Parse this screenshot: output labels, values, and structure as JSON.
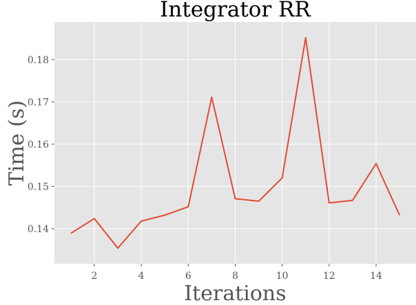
{
  "chart_data": {
    "type": "line",
    "title": "Integrator RR",
    "xlabel": "Iterations",
    "ylabel": "Time (s)",
    "x": [
      1,
      2,
      3,
      4,
      5,
      6,
      7,
      8,
      9,
      10,
      11,
      12,
      13,
      14,
      15
    ],
    "series": [
      {
        "values": [
          0.1389,
          0.1424,
          0.1354,
          0.1418,
          0.1432,
          0.1452,
          0.1711,
          0.1471,
          0.1465,
          0.152,
          0.1852,
          0.1461,
          0.1467,
          0.1554,
          0.1432
        ],
        "color": "#E24A33"
      }
    ],
    "xticks": [
      2,
      4,
      6,
      8,
      10,
      12,
      14
    ],
    "xtick_labels": [
      "2",
      "4",
      "6",
      "8",
      "10",
      "12",
      "14"
    ],
    "yticks": [
      0.14,
      0.15,
      0.16,
      0.17,
      0.18
    ],
    "ytick_labels": [
      "0.14",
      "0.15",
      "0.16",
      "0.17",
      "0.18"
    ],
    "xlim": [
      0.3,
      15.7
    ],
    "ylim": [
      0.1317,
      0.1889
    ],
    "grid": true,
    "background": "#E5E5E5",
    "grid_color": "#FFFFFF"
  }
}
